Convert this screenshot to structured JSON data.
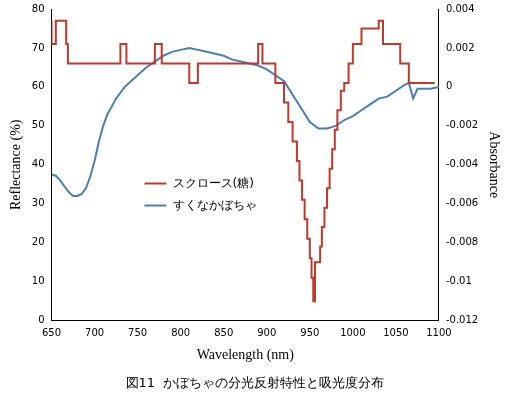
{
  "chart_data": {
    "type": "line",
    "title": "図11  かぼちゃの分光反射特性と吸光度分布",
    "x_label": "Wavelength (nm)",
    "y_label": "Reflectance (%)",
    "y2_label": "Absorbance",
    "xlim": [
      650,
      1100
    ],
    "xticks": [
      650,
      700,
      750,
      800,
      850,
      900,
      950,
      1000,
      1050,
      1100
    ],
    "ylim": [
      0,
      80
    ],
    "yticks": [
      0,
      10,
      20,
      30,
      40,
      50,
      60,
      70,
      80
    ],
    "y2lim": [
      -0.012,
      0.004
    ],
    "y2ticks": [
      -0.012,
      -0.01,
      -0.008,
      -0.006,
      -0.004,
      -0.002,
      0,
      0.002,
      0.004
    ],
    "grid": false,
    "legend": "lower left",
    "series": [
      {
        "name": "スクロース(糖)",
        "color": "#c0392b",
        "axis": "y2",
        "line_style": "stepped",
        "x": [
          650,
          655,
          667,
          669,
          730,
          737,
          770,
          778,
          810,
          820,
          890,
          895,
          910,
          920,
          925,
          930,
          935,
          938,
          941,
          944,
          947,
          950,
          952,
          954,
          956,
          962,
          964,
          967,
          970,
          973,
          976,
          979,
          982,
          986,
          990,
          995,
          1000,
          1010,
          1030,
          1035,
          1055,
          1065,
          1072,
          1085,
          1095
        ],
        "values": [
          0.0034,
          0.0022,
          0.0034,
          0.0022,
          0.0012,
          0.0022,
          0.0012,
          0.0022,
          0.0012,
          0.0002,
          0.0012,
          0.0022,
          0.0012,
          0.0002,
          -0.0008,
          -0.0018,
          -0.0028,
          -0.0038,
          -0.0048,
          -0.0058,
          -0.0068,
          -0.0078,
          -0.0088,
          -0.0098,
          -0.011,
          -0.009,
          -0.0082,
          -0.0072,
          -0.0062,
          -0.0052,
          -0.0042,
          -0.0032,
          -0.0022,
          -0.0012,
          -0.0002,
          0.0002,
          0.0012,
          0.0022,
          0.003,
          0.0034,
          0.0022,
          0.0012,
          0.0002,
          0.0002,
          0.0002
        ]
      },
      {
        "name": "すくなかぼちゃ",
        "color": "#4a7ebb",
        "axis": "y",
        "line_style": "solid",
        "x": [
          650,
          655,
          660,
          665,
          670,
          675,
          680,
          685,
          690,
          695,
          700,
          705,
          710,
          715,
          720,
          725,
          730,
          735,
          740,
          750,
          760,
          770,
          780,
          790,
          800,
          810,
          820,
          830,
          840,
          850,
          860,
          870,
          880,
          890,
          900,
          910,
          920,
          930,
          940,
          950,
          960,
          970,
          980,
          990,
          1000,
          1010,
          1020,
          1030,
          1040,
          1050,
          1060,
          1065,
          1070,
          1075,
          1080,
          1090,
          1100
        ],
        "values": [
          37.5,
          37.2,
          36,
          34.5,
          33,
          32,
          32,
          32.5,
          34,
          37,
          41,
          46,
          50,
          53,
          55,
          57,
          58.5,
          60,
          61,
          63,
          65,
          66.5,
          68,
          69,
          69.5,
          70,
          69.5,
          69,
          68.5,
          68,
          67,
          66.5,
          66,
          65.5,
          64.5,
          63,
          61.5,
          58,
          54.5,
          51,
          49.3,
          49.3,
          50,
          51.5,
          52.5,
          54,
          55.5,
          57,
          57.5,
          59,
          60.5,
          61,
          57,
          59.5,
          59.5,
          59.5,
          60
        ]
      }
    ]
  }
}
